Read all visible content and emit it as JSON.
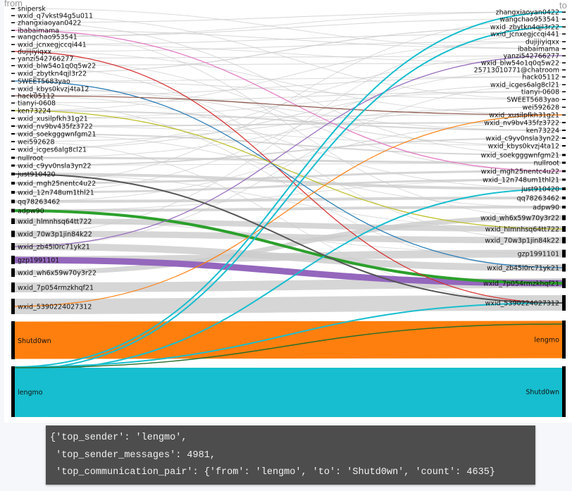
{
  "chart_data": {
    "type": "sankey",
    "source_axis_label": "from",
    "target_axis_label": "to",
    "sources": [
      "snipersk",
      "wxid_q7vkst94g5u011",
      "zhangxiaoyan0422",
      "ibabaimama",
      "wangchao953541",
      "wxid_jcnxegjccqi441",
      "dujijiyiqxx",
      "yanzi542766277",
      "wxid_blw54o1q0q5w22",
      "wxid_zbytkn4qjl3r22",
      "SWEET5683yao",
      "wxid_kbys0kvzj4ta12",
      "hack05112",
      "tianyi-0608",
      "ken73224",
      "wxid_xusilpfkh31g21",
      "wxid_nv9bv435fz3722",
      "wxid_soekgggwnfgm21",
      "wei592628",
      "wxid_icges6alg8cl21",
      "nullroot",
      "wxid_c9yv0nsla3yn22",
      "just910420",
      "wxid_mgh25nentc4u22",
      "wxid_12n748um1thl21",
      "qq78263462",
      "adpw90",
      "wxid_hlmnhsq64tt722",
      "wxid_70w3p1jin84k22",
      "wxid_zb45i0rc71yk21",
      "gzp1991101",
      "wxid_wh6x59w70y3r22",
      "wxid_7p054rmzkhqf21",
      "wxid_5390224027312",
      "Shutd0wn",
      "lengmo"
    ],
    "targets": [
      "zhangxiaoyan0422",
      "wangchao953541",
      "wxid_zbytkn4qjl3r22",
      "wxid_jcnxegjccqi441",
      "dujijiyiqxx",
      "ibabaimama",
      "yanzi542766277",
      "wxid_blw54o1q0q5w22",
      "25713010771@chatroom",
      "hack05112",
      "wxid_icges6alg8cl21",
      "tianyi-0608",
      "SWEET5683yao",
      "wei592628",
      "wxid_xusilpfkh31g21",
      "wxid_nv9bv435fz3722",
      "ken73224",
      "wxid_c9yv0nsla3yn22",
      "wxid_kbys0kvzj4ta12",
      "wxid_soekgggwnfgm21",
      "nullroot",
      "wxid_mgh25nentc4u22",
      "wxid_12n748um1thl21",
      "just910420",
      "qq78263462",
      "adpw90",
      "wxid_wh6x59w70y3r22",
      "wxid_hlmnhsq64tt722",
      "wxid_70w3p1jin84k22",
      "gzp1991101",
      "wxid_zb45i0rc71yk21",
      "wxid_7p054rmzkhqf21",
      "wxid_5390224027312",
      "lengmo",
      "Shutd0wn"
    ],
    "highlighted_links": [
      {
        "from": "lengmo",
        "to": "Shutd0wn",
        "count": 4635,
        "color": "#17becf"
      },
      {
        "from": "Shutd0wn",
        "to": "lengmo",
        "color": "#ff7f0e"
      },
      {
        "from": "gzp1991101",
        "to": "wxid_7p054rmzkhqf21",
        "color": "#9467bd"
      },
      {
        "from": "adpw90",
        "to": "wxid_7p054rmzkhqf21",
        "color": "#2ca02c"
      },
      {
        "from": "ibabaimama",
        "to": "wxid_mgh25nentc4u22",
        "color": "#e377c2"
      },
      {
        "from": "dujijiyiqxx",
        "to": "wxid_5390224027312",
        "color": "#d62728"
      },
      {
        "from": "SWEET5683yao",
        "to": "wxid_zb45i0rc71yk21",
        "color": "#1f77b4"
      },
      {
        "from": "hack05112",
        "to": "wxid_xusilpfkh31g21",
        "color": "#8c564b"
      },
      {
        "from": "ken73224",
        "to": "wxid_hlmnhsq64tt722",
        "color": "#bcbd22"
      },
      {
        "from": "wxid_5390224027312",
        "to": "wxid_xusilpfkh31g21",
        "color": "#ff7f0e"
      },
      {
        "from": "wxid_zb45i0rc71yk21",
        "to": "yanzi542766277",
        "color": "#9467bd"
      },
      {
        "from": "lengmo",
        "to": "zhangxiaoyan0422",
        "color": "#17becf"
      },
      {
        "from": "lengmo",
        "to": "wxid_zbytkn4qjl3r22",
        "color": "#17becf"
      },
      {
        "from": "lengmo",
        "to": "just910420",
        "color": "#17becf"
      },
      {
        "from": "lengmo",
        "to": "wxid_5390224027312",
        "color": "#17becf"
      },
      {
        "from": "lengmo",
        "to": "lengmo",
        "color": "#2a6e2a"
      },
      {
        "from": "just910420",
        "to": "wxid_5390224027312",
        "color": "#555555"
      }
    ],
    "default_link_color": "#cccccc"
  },
  "output": {
    "lines": [
      "{'top_sender': 'lengmo',",
      " 'top_sender_messages': 4981,",
      " 'top_communication_pair': {'from': 'lengmo', 'to': 'Shutd0wn', 'count': 4635}"
    ]
  }
}
